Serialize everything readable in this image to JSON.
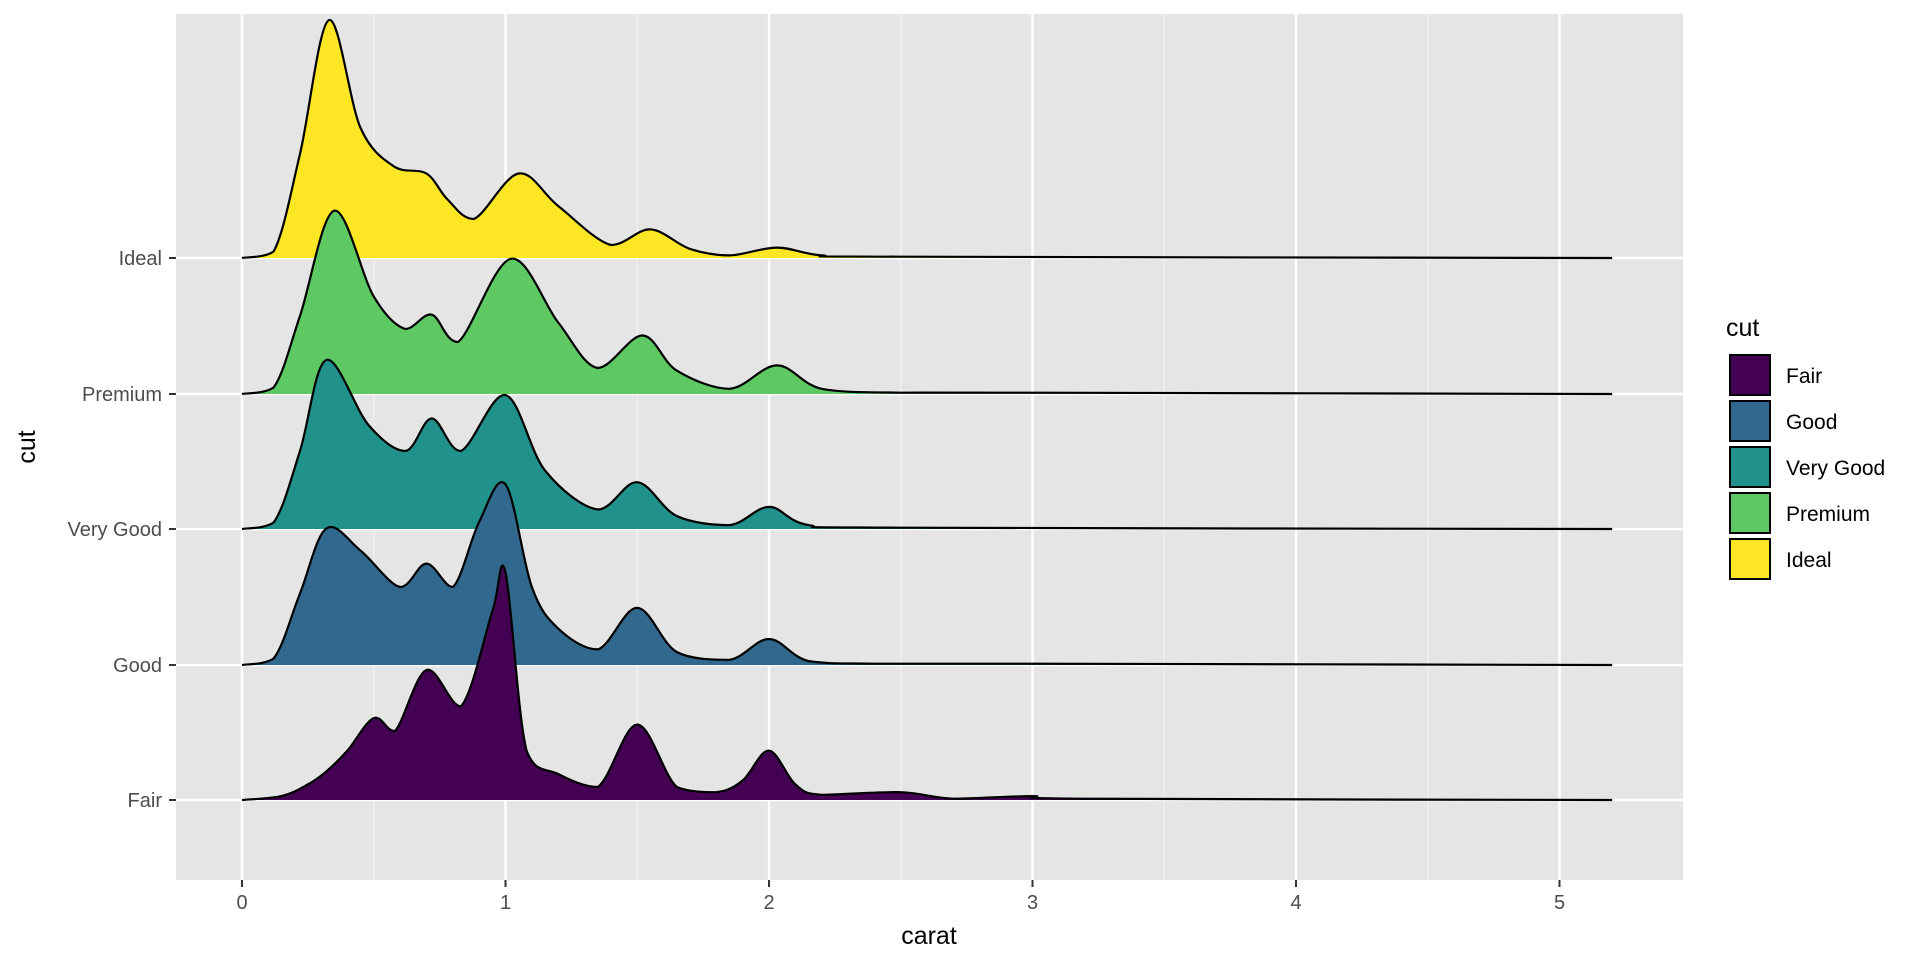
{
  "chart_data": {
    "type": "ridgeline",
    "xlabel": "carat",
    "ylabel": "cut",
    "xlim": [
      -0.25,
      5.45
    ],
    "x_ticks": [
      0,
      1,
      2,
      3,
      4,
      5
    ],
    "x_tick_labels": [
      "0",
      "1",
      "2",
      "3",
      "4",
      "5"
    ],
    "grid": true,
    "legend": {
      "title": "cut",
      "position": "right"
    },
    "categories": [
      "Fair",
      "Good",
      "Very Good",
      "Premium",
      "Ideal"
    ],
    "series": [
      {
        "name": "Fair",
        "color": "#440154",
        "x": [
          0.0,
          0.15,
          0.25,
          0.32,
          0.4,
          0.5,
          0.58,
          0.7,
          0.83,
          0.95,
          1.0,
          1.08,
          1.2,
          1.35,
          1.5,
          1.65,
          1.8,
          1.9,
          2.0,
          2.1,
          2.2,
          2.5,
          2.7,
          3.0,
          3.2,
          5.2
        ],
        "y": [
          0.0,
          0.03,
          0.12,
          0.22,
          0.38,
          0.63,
          0.53,
          1.0,
          0.72,
          1.45,
          1.75,
          0.38,
          0.2,
          0.1,
          0.58,
          0.1,
          0.06,
          0.15,
          0.38,
          0.12,
          0.04,
          0.06,
          0.01,
          0.03,
          0.01,
          0.0
        ]
      },
      {
        "name": "Good",
        "color": "#31688e",
        "x": [
          0.0,
          0.12,
          0.22,
          0.32,
          0.45,
          0.6,
          0.7,
          0.8,
          0.9,
          1.0,
          1.1,
          1.2,
          1.35,
          1.5,
          1.65,
          1.85,
          2.0,
          2.15,
          2.4,
          3.0,
          5.2
        ],
        "y": [
          0.0,
          0.05,
          0.55,
          1.05,
          0.88,
          0.6,
          0.78,
          0.6,
          1.1,
          1.39,
          0.6,
          0.28,
          0.12,
          0.44,
          0.1,
          0.04,
          0.2,
          0.03,
          0.01,
          0.01,
          0.0
        ]
      },
      {
        "name": "Very Good",
        "color": "#21918c",
        "x": [
          0.0,
          0.12,
          0.22,
          0.32,
          0.48,
          0.62,
          0.72,
          0.83,
          1.0,
          1.15,
          1.35,
          1.5,
          1.65,
          1.85,
          2.0,
          2.15,
          2.5,
          5.2
        ],
        "y": [
          0.0,
          0.05,
          0.6,
          1.3,
          0.8,
          0.6,
          0.85,
          0.6,
          1.03,
          0.45,
          0.15,
          0.36,
          0.1,
          0.03,
          0.17,
          0.03,
          0.01,
          0.0
        ]
      },
      {
        "name": "Premium",
        "color": "#5ec962",
        "x": [
          0.0,
          0.12,
          0.22,
          0.35,
          0.5,
          0.62,
          0.72,
          0.82,
          1.02,
          1.2,
          1.35,
          1.52,
          1.65,
          1.85,
          2.03,
          2.2,
          2.5,
          3.0,
          5.2
        ],
        "y": [
          0.0,
          0.05,
          0.6,
          1.41,
          0.75,
          0.5,
          0.61,
          0.4,
          1.04,
          0.55,
          0.2,
          0.45,
          0.18,
          0.04,
          0.22,
          0.04,
          0.01,
          0.01,
          0.0
        ]
      },
      {
        "name": "Ideal",
        "color": "#fde725",
        "x": [
          0.0,
          0.12,
          0.22,
          0.33,
          0.45,
          0.58,
          0.7,
          0.78,
          0.88,
          1.05,
          1.2,
          1.4,
          1.55,
          1.7,
          1.85,
          2.03,
          2.2,
          2.5,
          5.2
        ],
        "y": [
          0.0,
          0.05,
          0.8,
          1.83,
          1.0,
          0.7,
          0.65,
          0.45,
          0.3,
          0.65,
          0.4,
          0.1,
          0.22,
          0.07,
          0.02,
          0.08,
          0.02,
          0.01,
          0.0
        ]
      }
    ]
  }
}
